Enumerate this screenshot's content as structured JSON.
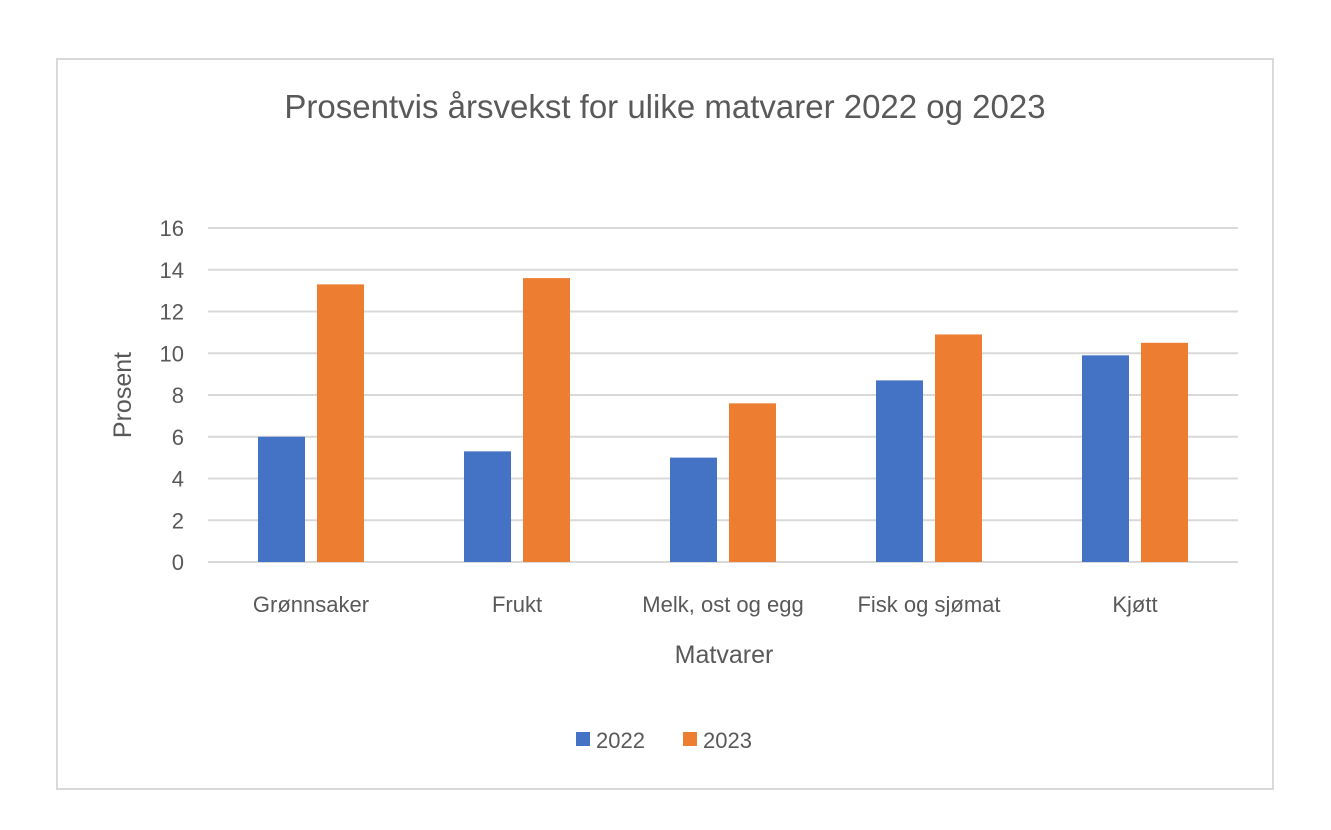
{
  "chart_data": {
    "type": "bar",
    "title": "Prosentvis årsvekst for ulike matvarer 2022 og 2023",
    "xlabel": "Matvarer",
    "ylabel": "Prosent",
    "categories": [
      "Grønnsaker",
      "Frukt",
      "Melk, ost og egg",
      "Fisk og sjømat",
      "Kjøtt"
    ],
    "series": [
      {
        "name": "2022",
        "values": [
          6.0,
          5.3,
          5.0,
          8.7,
          9.9
        ],
        "color": "#4472c4"
      },
      {
        "name": "2023",
        "values": [
          13.3,
          13.6,
          7.6,
          10.9,
          10.5
        ],
        "color": "#ed7d31"
      }
    ],
    "ylim": [
      0,
      16
    ],
    "yticks": [
      0,
      2,
      4,
      6,
      8,
      10,
      12,
      14,
      16
    ],
    "grid": true,
    "legend": "bottom"
  }
}
